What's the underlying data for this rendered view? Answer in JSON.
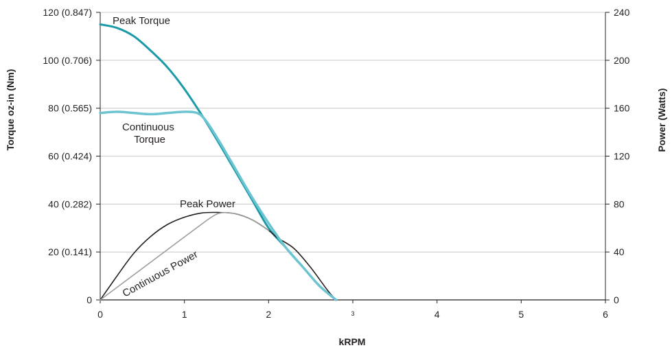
{
  "chart_data": {
    "type": "line",
    "xlabel": "kRPM",
    "ylabel_left": "Torque oz-in (Nm)",
    "ylabel_right": "Power (Watts)",
    "xlim": [
      0,
      6
    ],
    "ylim_left": [
      0,
      120
    ],
    "ylim_right": [
      0,
      240
    ],
    "x_ticks": [
      "0",
      "1",
      "2",
      "3",
      "4",
      "5",
      "6"
    ],
    "y_ticks_left": [
      "0",
      "20 (0.141)",
      "40 (0.282)",
      "60 (0.424)",
      "80 (0.565)",
      "100 (0.706)",
      "120 (0.847)"
    ],
    "y_ticks_right": [
      "0",
      "40",
      "80",
      "120",
      "160",
      "200",
      "240"
    ],
    "grid": "horizontal",
    "series": [
      {
        "name": "Peak Torque",
        "axis": "left",
        "color": "#1a9aa8",
        "x": [
          0,
          0.2,
          0.4,
          0.6,
          0.8,
          1.0,
          1.2,
          1.4,
          1.6,
          1.8,
          2.0,
          2.2,
          2.4,
          2.6,
          2.8
        ],
        "y": [
          115,
          113.5,
          110,
          104,
          97,
          88,
          77.5,
          66,
          54,
          42,
          30,
          22,
          14,
          6,
          0
        ]
      },
      {
        "name": "Continuous Torque",
        "axis": "left",
        "color": "#6cc4d0",
        "x": [
          0,
          0.2,
          0.4,
          0.6,
          0.8,
          1.0,
          1.15,
          1.25,
          1.4,
          1.6,
          1.8,
          2.0,
          2.2,
          2.4,
          2.6,
          2.8
        ],
        "y": [
          78,
          78.5,
          78,
          77.5,
          78,
          78.5,
          78,
          75,
          67,
          55,
          43,
          32,
          22,
          14,
          6,
          0
        ]
      },
      {
        "name": "Peak Power",
        "axis": "right",
        "color": "#231f20",
        "x": [
          0,
          0.2,
          0.4,
          0.6,
          0.8,
          1.0,
          1.2,
          1.4,
          1.6,
          1.8,
          2.0,
          2.1,
          2.3,
          2.5,
          2.7,
          2.8
        ],
        "y": [
          0,
          20,
          39,
          53,
          63,
          69,
          72.5,
          73,
          72,
          67,
          58,
          52,
          43,
          27,
          8,
          0
        ]
      },
      {
        "name": "Continuous Power",
        "axis": "right",
        "color": "#9d9d9c",
        "x": [
          0,
          0.3,
          0.6,
          0.9,
          1.2,
          1.4,
          1.6,
          1.8,
          2.0
        ],
        "y": [
          0,
          16,
          31,
          47,
          63,
          72,
          72,
          67,
          58
        ]
      }
    ],
    "annotations": [
      "Peak Torque",
      "Continuous Torque",
      "Peak Power",
      "Continuous Power"
    ]
  }
}
